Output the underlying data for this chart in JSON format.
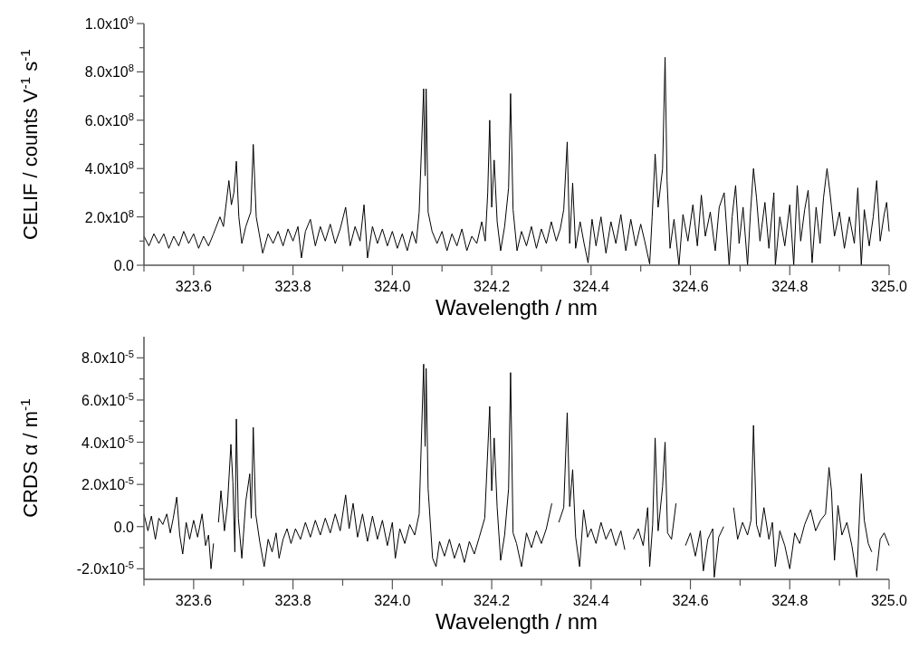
{
  "chart_data": [
    {
      "type": "line",
      "xlabel": "Wavelength / nm",
      "ylabel": "CELIF / counts V$^{-1}$ s$^{-1}$",
      "xlim": [
        323.5,
        325.0
      ],
      "xticks": [
        {
          "value": 323.5,
          "label": null
        },
        {
          "value": 323.6,
          "label": "323.6"
        },
        {
          "value": 323.7,
          "label": null
        },
        {
          "value": 323.8,
          "label": "323.8"
        },
        {
          "value": 323.9,
          "label": null
        },
        {
          "value": 324.0,
          "label": "324.0"
        },
        {
          "value": 324.1,
          "label": null
        },
        {
          "value": 324.2,
          "label": "324.2"
        },
        {
          "value": 324.3,
          "label": null
        },
        {
          "value": 324.4,
          "label": "324.4"
        },
        {
          "value": 324.5,
          "label": null
        },
        {
          "value": 324.6,
          "label": "324.6"
        },
        {
          "value": 324.7,
          "label": null
        },
        {
          "value": 324.8,
          "label": "324.8"
        },
        {
          "value": 324.9,
          "label": null
        },
        {
          "value": 325.0,
          "label": "325.0"
        }
      ],
      "ylim": [
        0,
        1000000000.0
      ],
      "yticks": [
        {
          "value": 0,
          "label": "0.0"
        },
        {
          "value": 100000000.0,
          "label": null
        },
        {
          "value": 200000000.0,
          "label": "2.0x10$^{8}$"
        },
        {
          "value": 300000000.0,
          "label": null
        },
        {
          "value": 400000000.0,
          "label": "4.0x10$^{8}$"
        },
        {
          "value": 500000000.0,
          "label": null
        },
        {
          "value": 600000000.0,
          "label": "6.0x10$^{8}$"
        },
        {
          "value": 700000000.0,
          "label": null
        },
        {
          "value": 800000000.0,
          "label": "8.0x10$^{8}$"
        },
        {
          "value": 900000000.0,
          "label": null
        },
        {
          "value": 1000000000.0,
          "label": "1.0x10$^{9}$"
        }
      ],
      "series": [
        {
          "color": "#000000",
          "x": [
            323.5,
            323.51,
            323.52,
            323.53,
            323.54,
            323.55,
            323.56,
            323.57,
            323.58,
            323.59,
            323.6,
            323.61,
            323.62,
            323.63,
            323.64,
            323.653,
            323.66,
            323.671,
            323.676,
            323.681,
            323.686,
            323.691,
            323.697,
            323.705,
            323.715,
            323.72,
            323.726,
            323.732,
            323.739,
            323.75,
            323.76,
            323.77,
            323.78,
            323.79,
            323.8,
            323.81,
            323.817,
            323.825,
            323.835,
            323.845,
            323.855,
            323.865,
            323.875,
            323.885,
            323.895,
            323.906,
            323.915,
            323.925,
            323.935,
            323.943,
            323.95,
            323.96,
            323.97,
            323.98,
            323.99,
            324.0,
            324.01,
            324.02,
            324.03,
            324.04,
            324.048,
            324.054,
            324.063,
            324.066,
            324.068,
            324.072,
            324.08,
            324.09,
            324.1,
            324.11,
            324.12,
            324.13,
            324.14,
            324.15,
            324.16,
            324.17,
            324.18,
            324.187,
            324.192,
            324.196,
            324.2,
            324.205,
            324.211,
            324.218,
            324.226,
            324.234,
            324.238,
            324.243,
            324.251,
            324.26,
            324.27,
            324.28,
            324.29,
            324.3,
            324.31,
            324.32,
            324.33,
            324.338,
            324.345,
            324.352,
            324.357,
            324.363,
            324.369,
            324.378,
            324.386,
            324.394,
            324.402,
            324.41,
            324.42,
            324.43,
            324.44,
            324.45,
            324.46,
            324.47,
            324.48,
            324.49,
            324.5,
            324.508,
            324.518,
            324.523,
            324.529,
            324.535,
            324.544,
            324.549,
            324.553,
            324.559,
            324.567,
            324.577,
            324.585,
            324.595,
            324.605,
            324.614,
            324.622,
            324.63,
            324.64,
            324.65,
            324.658,
            324.668,
            324.678,
            324.684,
            324.691,
            324.698,
            324.706,
            324.715,
            324.721,
            324.727,
            324.733,
            324.74,
            324.75,
            324.758,
            324.768,
            324.771,
            324.78,
            324.79,
            324.8,
            324.808,
            324.815,
            324.822,
            324.83,
            324.837,
            324.845,
            324.853,
            324.861,
            324.868,
            324.875,
            324.881,
            324.89,
            324.9,
            324.91,
            324.92,
            324.93,
            324.937,
            324.944,
            324.95,
            324.96,
            324.968,
            324.975,
            324.982,
            324.99,
            324.995,
            325.0
          ],
          "values": [
            120000000.0,
            80000000.0,
            130000000.0,
            90000000.0,
            130000000.0,
            70000000.0,
            120000000.0,
            80000000.0,
            140000000.0,
            90000000.0,
            130000000.0,
            70000000.0,
            120000000.0,
            80000000.0,
            130000000.0,
            200000000.0,
            160000000.0,
            350000000.0,
            250000000.0,
            300000000.0,
            430000000.0,
            200000000.0,
            90000000.0,
            160000000.0,
            220000000.0,
            500000000.0,
            200000000.0,
            130000000.0,
            50000000.0,
            130000000.0,
            90000000.0,
            140000000.0,
            80000000.0,
            150000000.0,
            100000000.0,
            160000000.0,
            30000000.0,
            140000000.0,
            190000000.0,
            80000000.0,
            160000000.0,
            100000000.0,
            170000000.0,
            90000000.0,
            150000000.0,
            240000000.0,
            80000000.0,
            160000000.0,
            100000000.0,
            250000000.0,
            30000000.0,
            160000000.0,
            90000000.0,
            150000000.0,
            80000000.0,
            140000000.0,
            70000000.0,
            130000000.0,
            60000000.0,
            140000000.0,
            90000000.0,
            220000000.0,
            730000000.0,
            370000000.0,
            730000000.0,
            220000000.0,
            140000000.0,
            90000000.0,
            140000000.0,
            60000000.0,
            130000000.0,
            80000000.0,
            150000000.0,
            60000000.0,
            120000000.0,
            90000000.0,
            180000000.0,
            100000000.0,
            300000000.0,
            600000000.0,
            240000000.0,
            435000000.0,
            180000000.0,
            60000000.0,
            160000000.0,
            320000000.0,
            710000000.0,
            230000000.0,
            60000000.0,
            140000000.0,
            80000000.0,
            160000000.0,
            70000000.0,
            150000000.0,
            90000000.0,
            180000000.0,
            100000000.0,
            150000000.0,
            230000000.0,
            510000000.0,
            90000000.0,
            340000000.0,
            70000000.0,
            180000000.0,
            90000000.0,
            10000000.0,
            190000000.0,
            80000000.0,
            200000000.0,
            50000000.0,
            180000000.0,
            90000000.0,
            210000000.0,
            60000000.0,
            190000000.0,
            80000000.0,
            170000000.0,
            100000000.0,
            5000000.0,
            200000000.0,
            460000000.0,
            240000000.0,
            400000000.0,
            860000000.0,
            350000000.0,
            70000000.0,
            190000000.0,
            0,
            210000000.0,
            100000000.0,
            250000000.0,
            80000000.0,
            290000000.0,
            120000000.0,
            220000000.0,
            60000000.0,
            240000000.0,
            300000000.0,
            0,
            200000000.0,
            330000000.0,
            90000000.0,
            240000000.0,
            0,
            220000000.0,
            400000000.0,
            280000000.0,
            100000000.0,
            260000000.0,
            70000000.0,
            300000000.0,
            0,
            200000000.0,
            80000000.0,
            250000000.0,
            0,
            330000000.0,
            100000000.0,
            230000000.0,
            310000000.0,
            10000000.0,
            240000000.0,
            90000000.0,
            280000000.0,
            400000000.0,
            300000000.0,
            120000000.0,
            220000000.0,
            70000000.0,
            200000000.0,
            90000000.0,
            320000000.0,
            0,
            230000000.0,
            80000000.0,
            200000000.0,
            350000000.0,
            100000000.0,
            210000000.0,
            260000000.0,
            140000000.0
          ]
        }
      ]
    },
    {
      "type": "line",
      "xlabel": "Wavelength / nm",
      "ylabel": "CRDS α / m$^{-1}$",
      "xlim": [
        323.5,
        325.0
      ],
      "xticks": [
        {
          "value": 323.5,
          "label": null
        },
        {
          "value": 323.6,
          "label": "323.6"
        },
        {
          "value": 323.7,
          "label": null
        },
        {
          "value": 323.8,
          "label": "323.8"
        },
        {
          "value": 323.9,
          "label": null
        },
        {
          "value": 324.0,
          "label": "324.0"
        },
        {
          "value": 324.1,
          "label": null
        },
        {
          "value": 324.2,
          "label": "324.2"
        },
        {
          "value": 324.3,
          "label": null
        },
        {
          "value": 324.4,
          "label": "324.4"
        },
        {
          "value": 324.5,
          "label": null
        },
        {
          "value": 324.6,
          "label": "324.6"
        },
        {
          "value": 324.7,
          "label": null
        },
        {
          "value": 324.8,
          "label": "324.8"
        },
        {
          "value": 324.9,
          "label": null
        },
        {
          "value": 325.0,
          "label": "325.0"
        }
      ],
      "ylim": [
        -2.5e-05,
        9e-05
      ],
      "yticks": [
        {
          "value": -2e-05,
          "label": "-2.0x10$^{-5}$"
        },
        {
          "value": -1e-05,
          "label": null
        },
        {
          "value": 0,
          "label": "0.0"
        },
        {
          "value": 1e-05,
          "label": null
        },
        {
          "value": 2e-05,
          "label": "2.0x10$^{-5}$"
        },
        {
          "value": 3e-05,
          "label": null
        },
        {
          "value": 4e-05,
          "label": "4.0x10$^{-5}$"
        },
        {
          "value": 5e-05,
          "label": null
        },
        {
          "value": 6e-05,
          "label": "6.0x10$^{-5}$"
        },
        {
          "value": 7e-05,
          "label": null
        },
        {
          "value": 8e-05,
          "label": "8.0x10$^{-5}$"
        }
      ],
      "series": [
        {
          "color": "#000000",
          "x": [
            323.5,
            323.508,
            323.515,
            323.523,
            323.53,
            323.538,
            323.546,
            323.553,
            323.559,
            323.566,
            323.572,
            323.578,
            323.585,
            323.592,
            323.6,
            323.608,
            323.617,
            323.624,
            323.63,
            323.635,
            323.64,
            323.644,
            323.65,
            323.655,
            323.662,
            323.668,
            323.675,
            323.679,
            323.683,
            323.686,
            323.69,
            323.697,
            323.705,
            323.713,
            323.716,
            323.72,
            323.725,
            323.733,
            323.742,
            323.75,
            323.758,
            323.766,
            323.772,
            323.78,
            323.788,
            323.796,
            323.805,
            323.815,
            323.825,
            323.835,
            323.845,
            323.855,
            323.865,
            323.875,
            323.885,
            323.895,
            323.906,
            323.913,
            323.921,
            323.93,
            323.94,
            323.95,
            323.96,
            323.97,
            323.98,
            323.99,
            324.0,
            324.006,
            324.015,
            324.025,
            324.035,
            324.045,
            324.054,
            324.063,
            324.066,
            324.068,
            324.072,
            324.081,
            324.088,
            324.095,
            324.105,
            324.115,
            324.125,
            324.135,
            324.145,
            324.155,
            324.165,
            324.175,
            324.186,
            324.196,
            324.2,
            324.205,
            324.211,
            324.218,
            324.226,
            324.234,
            324.238,
            324.243,
            324.25,
            324.26,
            324.27,
            324.28,
            324.29,
            324.3,
            324.31,
            324.321,
            324.327,
            324.335,
            324.345,
            324.352,
            324.357,
            324.363,
            324.369,
            324.377,
            324.385,
            324.393,
            324.4,
            324.41,
            324.42,
            324.43,
            324.44,
            324.45,
            324.46,
            324.468,
            324.476,
            324.485,
            324.495,
            324.505,
            324.514,
            324.518,
            324.524,
            324.529,
            324.535,
            324.544,
            324.549,
            324.554,
            324.562,
            324.571,
            324.58,
            324.59,
            324.6,
            324.61,
            324.62,
            324.626,
            324.635,
            324.645,
            324.648,
            324.657,
            324.667,
            324.678,
            324.687,
            324.695,
            324.705,
            324.715,
            324.722,
            324.727,
            324.733,
            324.74,
            324.748,
            324.758,
            324.765,
            324.771,
            324.78,
            324.79,
            324.8,
            324.81,
            324.82,
            324.83,
            324.842,
            324.852,
            324.862,
            324.872,
            324.879,
            324.884,
            324.89,
            324.897,
            324.905,
            324.915,
            324.925,
            324.935,
            324.944,
            324.95,
            324.958,
            324.965,
            324.97,
            324.975,
            324.982,
            324.99,
            325.0
          ],
          "values": [
            6e-06,
            -2e-06,
            5e-06,
            -6e-06,
            4e-06,
            1e-06,
            6e-06,
            -3e-06,
            4e-06,
            1.4e-05,
            -4e-06,
            -1.3e-05,
            2e-06,
            -6e-06,
            3e-06,
            -5e-06,
            6e-06,
            -9e-06,
            -4e-06,
            -2e-05,
            -8e-06,
            null,
            2e-06,
            1.7e-05,
            -2e-06,
            1e-05,
            3.9e-05,
            2.1e-05,
            -1.2e-05,
            5.1e-05,
            4e-06,
            -1.5e-05,
            1.2e-05,
            2.5e-05,
            4e-06,
            4.7e-05,
            6e-06,
            -7e-06,
            -1.9e-05,
            -6e-06,
            -1.2e-05,
            -3e-06,
            -1.5e-05,
            -6e-06,
            -1e-06,
            -8e-06,
            -1e-06,
            -6e-06,
            2e-06,
            -5e-06,
            3e-06,
            -4e-06,
            4e-06,
            -3e-06,
            6e-06,
            -2e-06,
            1.5e-05,
            -1e-06,
            1.1e-05,
            -5e-06,
            6e-06,
            -7e-06,
            5e-06,
            -6e-06,
            3e-06,
            -9e-06,
            2e-06,
            -1.5e-05,
            -1e-06,
            -8e-06,
            1e-06,
            -4e-06,
            6e-06,
            7.7e-05,
            3.8e-05,
            7.5e-05,
            1.8e-05,
            -1.5e-05,
            -1.9e-05,
            -7e-06,
            -1.4e-05,
            -6e-06,
            -1.5e-05,
            -8e-06,
            -1.7e-05,
            -7e-06,
            -1.3e-05,
            -5e-06,
            4e-06,
            5.7e-05,
            1.7e-05,
            4.2e-05,
            9e-06,
            -1.6e-05,
            -4e-06,
            1.8e-05,
            7.3e-05,
            -3e-06,
            -8e-06,
            -1.9e-05,
            -3e-06,
            -1e-05,
            -2e-06,
            -8e-06,
            -1e-06,
            1.1e-05,
            null,
            2e-06,
            9e-06,
            5.4e-05,
            9.5e-06,
            2.7e-05,
            -5e-06,
            -1.9e-05,
            8e-06,
            -5e-06,
            -1e-06,
            -8e-06,
            2e-06,
            -6e-06,
            -1e-06,
            -9e-06,
            -2e-06,
            -1.1e-05,
            null,
            -6e-06,
            -1e-06,
            -9e-06,
            9e-06,
            -1.9e-05,
            1e-06,
            4.2e-05,
            -2e-06,
            1.9e-05,
            4e-05,
            -3e-06,
            -6e-06,
            1.1e-05,
            null,
            -9e-06,
            -3e-06,
            -1.4e-05,
            -2e-06,
            -2.1e-05,
            -6e-06,
            -1e-06,
            -2.4e-05,
            -5e-06,
            0,
            null,
            9e-06,
            -6e-06,
            2e-06,
            -4e-06,
            3e-06,
            4.8e-05,
            1e-06,
            -5e-06,
            9e-06,
            -6e-06,
            2e-06,
            -1.9e-05,
            -2e-06,
            -9e-06,
            -2e-05,
            -3e-06,
            -8e-06,
            1e-06,
            8e-06,
            -2e-06,
            3e-06,
            6e-06,
            2.8e-05,
            1.7e-05,
            -1.6e-05,
            1e-05,
            -4e-06,
            2e-06,
            -9e-06,
            -2.4e-05,
            2.5e-05,
            3e-06,
            -8e-06,
            -1.2e-05,
            null,
            -2.1e-05,
            -6e-06,
            -3e-06,
            -9e-06
          ]
        }
      ]
    }
  ]
}
